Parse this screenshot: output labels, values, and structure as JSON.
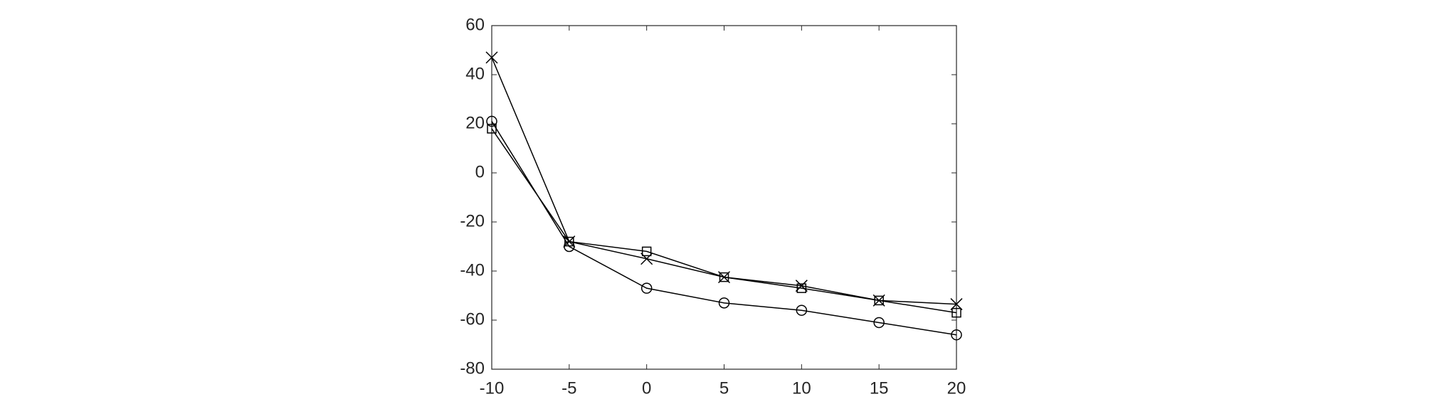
{
  "chart_data": {
    "type": "line",
    "x": [
      -10,
      -5,
      0,
      5,
      10,
      15,
      20
    ],
    "series": [
      {
        "marker": "circle",
        "color": "#000000",
        "values": [
          21,
          -30,
          -47,
          -53,
          -56,
          -61,
          -66
        ]
      },
      {
        "marker": "square",
        "color": "#000000",
        "values": [
          18,
          -28,
          -32,
          -42.5,
          -47,
          -52,
          -57
        ]
      },
      {
        "marker": "x",
        "color": "#000000",
        "values": [
          47,
          -28,
          -35,
          -42.5,
          -46,
          -52,
          -53.5
        ]
      }
    ],
    "xlim": [
      -10,
      20
    ],
    "xticks": [
      -10,
      -5,
      0,
      5,
      10,
      15,
      20
    ],
    "ylim": [
      -80,
      60
    ],
    "yticks": [
      -80,
      -60,
      -40,
      -20,
      0,
      20,
      40,
      60
    ],
    "grid": false
  }
}
